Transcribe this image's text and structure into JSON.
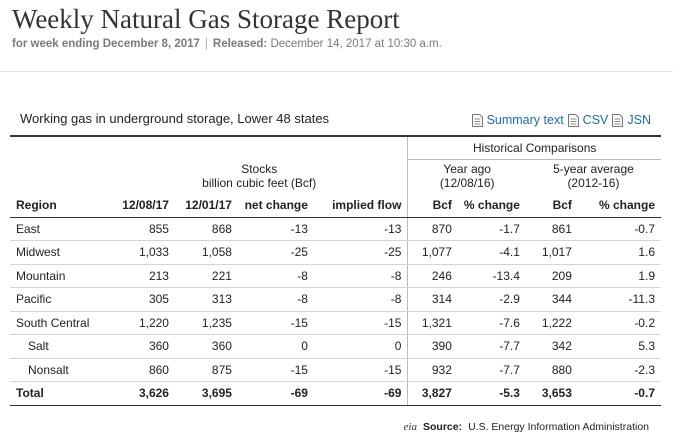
{
  "header": {
    "title": "Weekly Natural Gas Storage Report",
    "week_label": "for week ending December 8, 2017",
    "separator": "|",
    "released_label": "Released:",
    "released_value": "December 14, 2017 at 10:30 a.m."
  },
  "panel": {
    "title": "Working gas in underground storage, Lower 48 states",
    "links": [
      "Summary text",
      "CSV",
      "JSN"
    ]
  },
  "table": {
    "historical_label": "Historical Comparisons",
    "stocks_label": "Stocks",
    "stocks_units": "billion cubic feet (Bcf)",
    "year_ago_label": "Year ago",
    "year_ago_date": "(12/08/16)",
    "five_year_label": "5-year average",
    "five_year_range": "(2012-16)",
    "columns": [
      "Region",
      "12/08/17",
      "12/01/17",
      "net change",
      "implied flow",
      "Bcf",
      "% change",
      "Bcf",
      "% change"
    ],
    "rows": [
      [
        "East",
        "855",
        "868",
        "-13",
        "-13",
        "870",
        "-1.7",
        "861",
        "-0.7"
      ],
      [
        "Midwest",
        "1,033",
        "1,058",
        "-25",
        "-25",
        "1,077",
        "-4.1",
        "1,017",
        "1.6"
      ],
      [
        "Mountain",
        "213",
        "221",
        "-8",
        "-8",
        "246",
        "-13.4",
        "209",
        "1.9"
      ],
      [
        "Pacific",
        "305",
        "313",
        "-8",
        "-8",
        "314",
        "-2.9",
        "344",
        "-11.3"
      ],
      [
        "South Central",
        "1,220",
        "1,235",
        "-15",
        "-15",
        "1,321",
        "-7.6",
        "1,222",
        "-0.2"
      ],
      [
        "Salt",
        "360",
        "360",
        "0",
        "0",
        "390",
        "-7.7",
        "342",
        "5.3"
      ],
      [
        "Nonsalt",
        "860",
        "875",
        "-15",
        "-15",
        "932",
        "-7.7",
        "880",
        "-2.3"
      ]
    ],
    "total": [
      "Total",
      "3,626",
      "3,695",
      "-69",
      "-69",
      "3,827",
      "-5.3",
      "3,653",
      "-0.7"
    ]
  },
  "source": {
    "logo_text": "eia",
    "label": "Source:",
    "value": "U.S. Energy Information Administration"
  }
}
